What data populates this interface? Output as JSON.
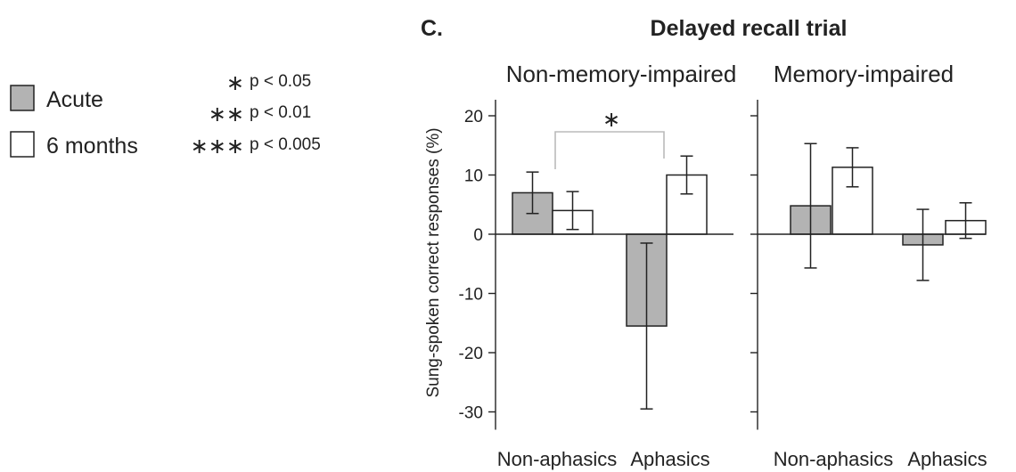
{
  "panel_label": "C.",
  "legend": {
    "items": [
      {
        "label": "Acute",
        "fill": "#b3b3b3"
      },
      {
        "label": "6 months",
        "fill": "#ffffff"
      }
    ],
    "significance": [
      {
        "stars": "∗",
        "text": "p < 0.05"
      },
      {
        "stars": "∗∗",
        "text": "p < 0.01"
      },
      {
        "stars": "∗∗∗",
        "text": "p < 0.005"
      }
    ]
  },
  "chart_data": {
    "type": "bar",
    "title": "Delayed recall trial",
    "ylabel": "Sung-spoken correct responses (%)",
    "ylim": [
      -33,
      23
    ],
    "yticks": [
      20,
      10,
      0,
      -10,
      -20,
      -30
    ],
    "ytick_labels": [
      "20",
      "10",
      "0",
      "-10",
      "-20",
      "-30"
    ],
    "colors": {
      "Acute": "#b3b3b3",
      "6 months": "#ffffff"
    },
    "panels": [
      {
        "title": "Non-memory-impaired",
        "categories": [
          "Non-aphasics",
          "Aphasics"
        ],
        "series": [
          {
            "name": "Acute",
            "values": [
              7.0,
              -15.5
            ],
            "error": [
              3.5,
              14.0
            ]
          },
          {
            "name": "6 months",
            "values": [
              4.0,
              10.0
            ],
            "error": [
              3.2,
              3.2
            ]
          }
        ],
        "annotations": [
          {
            "type": "significance-bracket",
            "text": "∗",
            "from": "Non-aphasics",
            "to": "Aphasics"
          }
        ]
      },
      {
        "title": "Memory-impaired",
        "categories": [
          "Non-aphasics",
          "Aphasics"
        ],
        "series": [
          {
            "name": "Acute",
            "values": [
              4.8,
              -1.8
            ],
            "error": [
              10.5,
              6.0
            ]
          },
          {
            "name": "6 months",
            "values": [
              11.3,
              2.3
            ],
            "error": [
              3.3,
              3.0
            ]
          }
        ],
        "annotations": []
      }
    ]
  }
}
